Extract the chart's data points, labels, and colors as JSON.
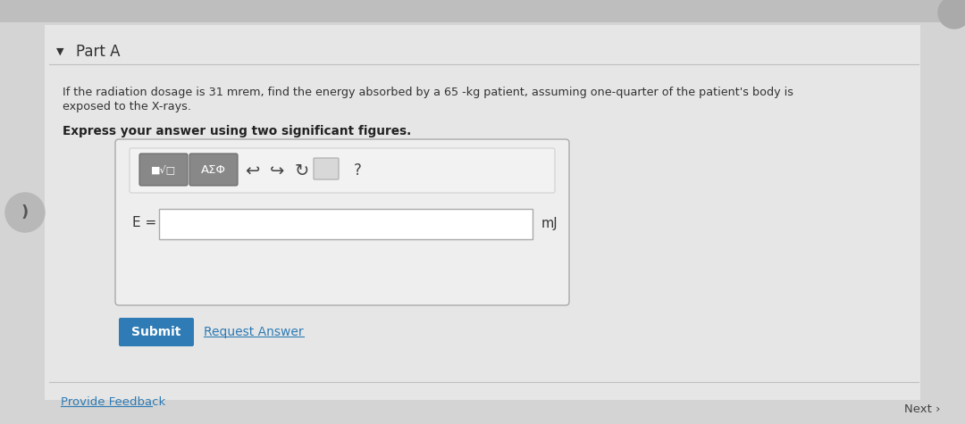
{
  "bg_color": "#d4d4d4",
  "panel_color": "#e8e8e8",
  "title": "Part A",
  "body_text_line1": "If the radiation dosage is 31 mrem, find the energy absorbed by a 65 -kg patient, assuming one-quarter of the patient's body is",
  "body_text_line2": "exposed to the X-rays.",
  "bold_instruction": "Express your answer using two significant figures.",
  "eq_label": "E =",
  "unit_label": "mJ",
  "submit_text": "Submit",
  "request_answer_text": "Request Answer",
  "provide_feedback_text": "Provide Feedback",
  "next_text": "Next ›",
  "submit_color": "#2e7bb5",
  "submit_text_color": "#ffffff",
  "top_bar_color": "#bebebe",
  "link_color": "#2e7bb5"
}
